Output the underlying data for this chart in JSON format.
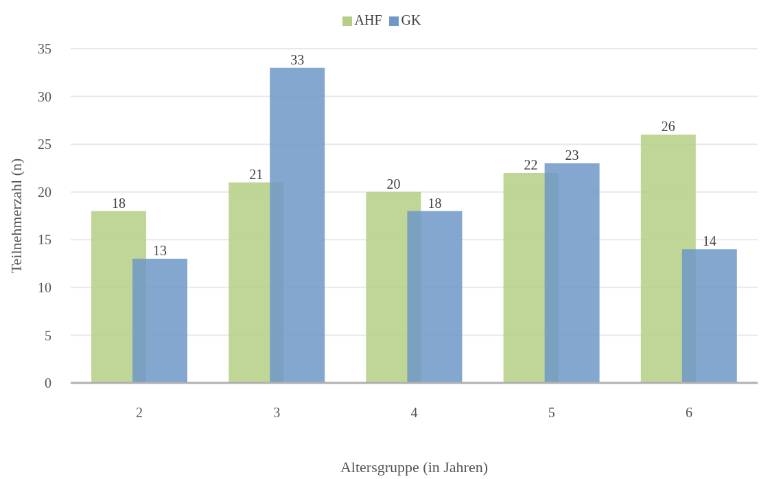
{
  "chart_data": {
    "type": "bar",
    "xlabel": "Altersgruppe (in Jahren)",
    "ylabel": "Teilnehmerzahl (n)",
    "categories": [
      "2",
      "3",
      "4",
      "5",
      "6"
    ],
    "series": [
      {
        "name": "AHF",
        "color": "#b5cf85",
        "values": [
          18,
          21,
          20,
          22,
          26
        ]
      },
      {
        "name": "GK",
        "color": "#6f98c8",
        "values": [
          13,
          33,
          18,
          23,
          14
        ]
      }
    ],
    "ylim": [
      0,
      35
    ],
    "yticks": [
      0,
      5,
      10,
      15,
      20,
      25,
      30,
      35
    ],
    "grid": "y",
    "legend": "top",
    "data_labels": true
  }
}
